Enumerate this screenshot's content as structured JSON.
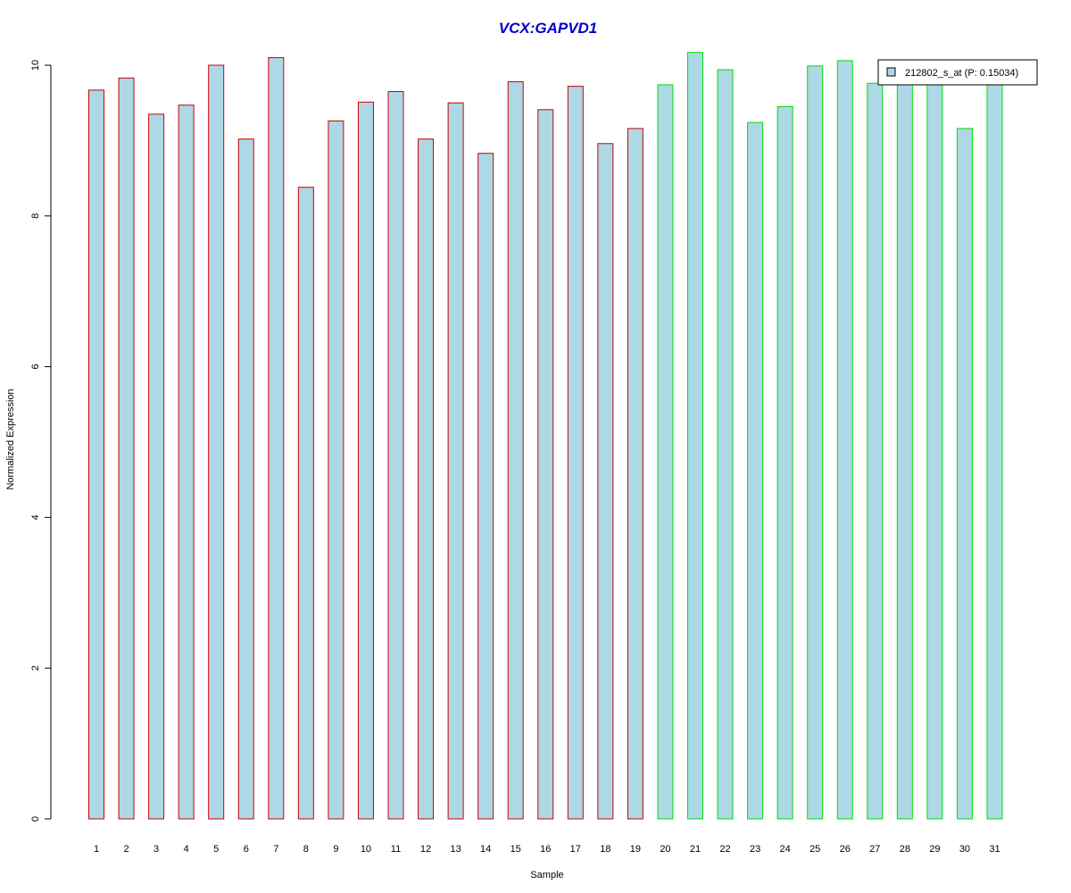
{
  "chart_data": {
    "type": "bar",
    "title": "VCX:GAPVD1",
    "xlabel": "Sample",
    "ylabel": "Normalized Expression",
    "categories": [
      "1",
      "2",
      "3",
      "4",
      "5",
      "6",
      "7",
      "8",
      "9",
      "10",
      "11",
      "12",
      "13",
      "14",
      "15",
      "16",
      "17",
      "18",
      "19",
      "20",
      "21",
      "22",
      "23",
      "24",
      "25",
      "26",
      "27",
      "28",
      "29",
      "30",
      "31"
    ],
    "series": [
      {
        "name": "212802_s_at (P: 0.15034)",
        "values": [
          9.67,
          9.83,
          9.35,
          9.47,
          10.0,
          9.02,
          10.1,
          8.38,
          9.26,
          9.51,
          9.65,
          9.02,
          9.5,
          8.83,
          9.78,
          9.41,
          9.72,
          8.96,
          9.16,
          9.74,
          10.17,
          9.94,
          9.24,
          9.45,
          9.99,
          10.06,
          9.76,
          9.76,
          9.76,
          9.16,
          9.76
        ]
      }
    ],
    "groups": [
      1,
      1,
      1,
      1,
      1,
      1,
      1,
      1,
      1,
      1,
      1,
      1,
      1,
      1,
      1,
      1,
      1,
      1,
      1,
      2,
      2,
      2,
      2,
      2,
      2,
      2,
      2,
      2,
      2,
      2,
      2
    ],
    "ylim": [
      0,
      10.2
    ],
    "yticks": [
      0,
      2,
      4,
      6,
      8,
      10
    ],
    "grid": false,
    "legend_position": "top-right",
    "colors": {
      "title": "#0000cc",
      "bar_fill": "#add8e6",
      "group1_border": "#cc0000",
      "group2_border": "#00dd00",
      "axis": "#000000"
    }
  }
}
